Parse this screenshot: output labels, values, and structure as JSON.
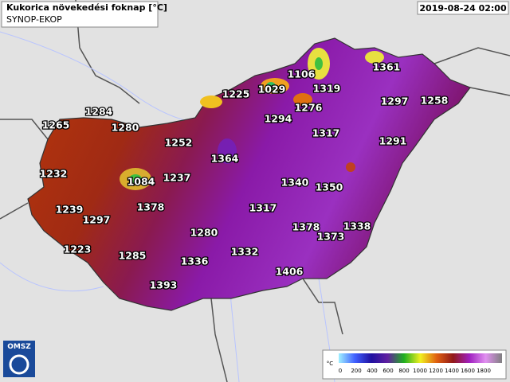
{
  "header": {
    "title": "Kukorica növekedési foknap [°C]",
    "subtitle": "SYNOP-EKOP",
    "timestamp": "2019-08-24 02:00"
  },
  "stations": [
    1361,
    1106,
    1319,
    1225,
    1029,
    1276,
    1297,
    1258,
    1284,
    1294,
    1265,
    1280,
    1317,
    1291,
    1252,
    1364,
    1232,
    1237,
    1084,
    1340,
    1350,
    1239,
    1378,
    1317,
    1297,
    1378,
    1338,
    1373,
    1280,
    1223,
    1332,
    1285,
    1336,
    1406,
    1393
  ],
  "legend": {
    "unit": "°C",
    "ticks": [
      0,
      200,
      400,
      600,
      800,
      1000,
      1200,
      1400,
      1600,
      1800
    ]
  },
  "logo": "OMSZ"
}
